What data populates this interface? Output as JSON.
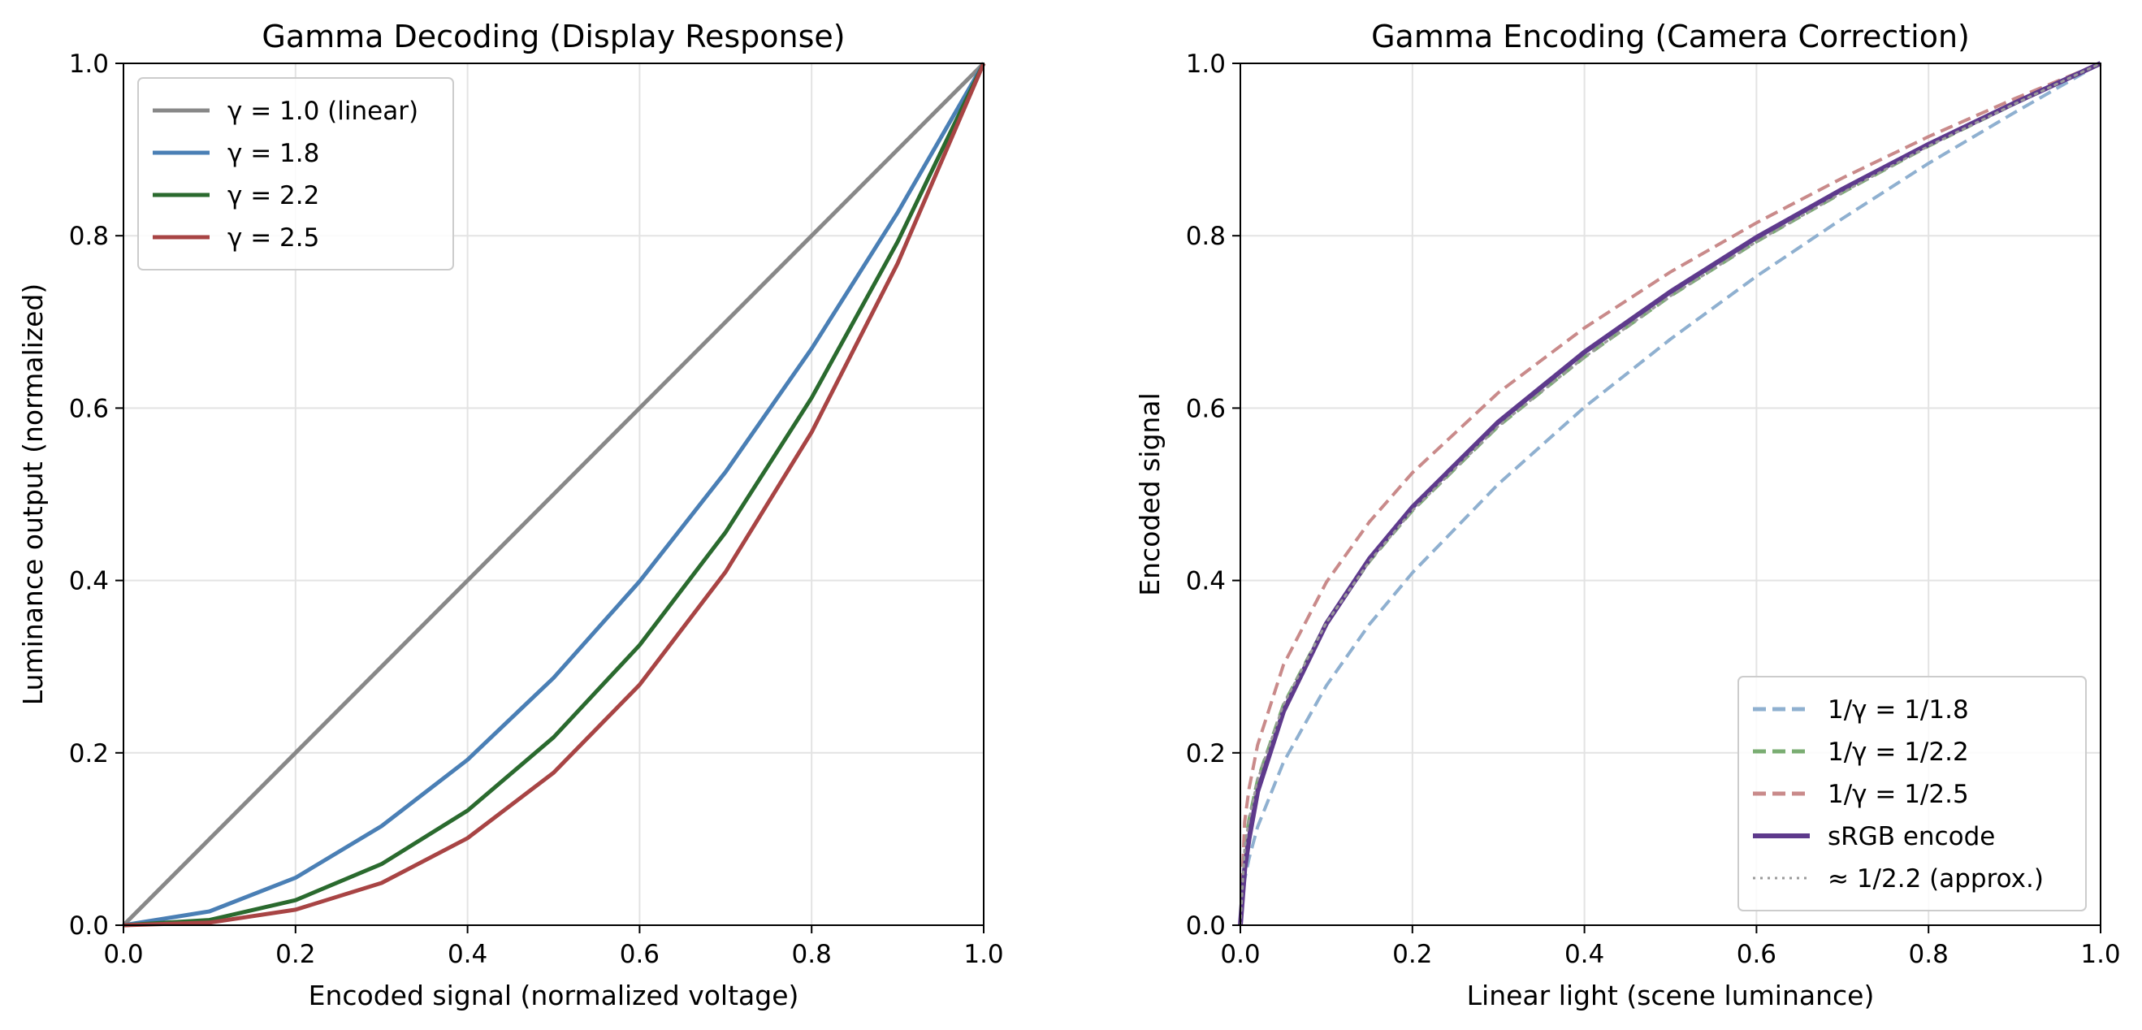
{
  "chart_data": [
    {
      "type": "line",
      "title": "Gamma Decoding (Display Response)",
      "xlabel": "Encoded signal (normalized voltage)",
      "ylabel": "Luminance output (normalized)",
      "xlim": [
        0.0,
        1.0
      ],
      "ylim": [
        0.0,
        1.0
      ],
      "xticks": [
        "0.0",
        "0.2",
        "0.4",
        "0.6",
        "0.8",
        "1.0"
      ],
      "yticks": [
        "0.0",
        "0.2",
        "0.4",
        "0.6",
        "0.8",
        "1.0"
      ],
      "grid": true,
      "legend_position": "top-left",
      "x": [
        0.0,
        0.1,
        0.2,
        0.3,
        0.4,
        0.5,
        0.6,
        0.7,
        0.8,
        0.9,
        1.0
      ],
      "series": [
        {
          "name": "γ = 1.0 (linear)",
          "color": "#888888",
          "style": "solid",
          "values": [
            0.0,
            0.1,
            0.2,
            0.3,
            0.4,
            0.5,
            0.6,
            0.7,
            0.8,
            0.9,
            1.0
          ]
        },
        {
          "name": "γ = 1.8",
          "color": "#4a7fb5",
          "style": "solid",
          "values": [
            0.0,
            0.016,
            0.055,
            0.115,
            0.192,
            0.287,
            0.399,
            0.526,
            0.669,
            0.827,
            1.0
          ]
        },
        {
          "name": "γ = 2.2",
          "color": "#2a6a2e",
          "style": "solid",
          "values": [
            0.0,
            0.006,
            0.029,
            0.071,
            0.133,
            0.218,
            0.325,
            0.456,
            0.612,
            0.793,
            1.0
          ]
        },
        {
          "name": "γ = 2.5",
          "color": "#a84444",
          "style": "solid",
          "values": [
            0.0,
            0.003,
            0.018,
            0.049,
            0.101,
            0.177,
            0.279,
            0.41,
            0.572,
            0.768,
            1.0
          ]
        }
      ]
    },
    {
      "type": "line",
      "title": "Gamma Encoding (Camera Correction)",
      "xlabel": "Linear light (scene luminance)",
      "ylabel": "Encoded signal",
      "xlim": [
        0.0,
        1.0
      ],
      "ylim": [
        0.0,
        1.0
      ],
      "xticks": [
        "0.0",
        "0.2",
        "0.4",
        "0.6",
        "0.8",
        "1.0"
      ],
      "yticks": [
        "0.0",
        "0.2",
        "0.4",
        "0.6",
        "0.8",
        "1.0"
      ],
      "grid": true,
      "legend_position": "bottom-right",
      "x": [
        0.0,
        0.005,
        0.01,
        0.02,
        0.05,
        0.1,
        0.15,
        0.2,
        0.3,
        0.4,
        0.5,
        0.6,
        0.7,
        0.8,
        0.9,
        1.0
      ],
      "series": [
        {
          "name": "1/γ = 1/1.8",
          "color": "#8fb0d0",
          "style": "dashed",
          "values": [
            0.0,
            0.053,
            0.077,
            0.114,
            0.189,
            0.278,
            0.349,
            0.409,
            0.512,
            0.601,
            0.68,
            0.753,
            0.82,
            0.884,
            0.943,
            1.0
          ]
        },
        {
          "name": "1/γ = 1/2.2",
          "color": "#7aad72",
          "style": "dashed",
          "values": [
            0.0,
            0.09,
            0.123,
            0.169,
            0.256,
            0.351,
            0.422,
            0.481,
            0.579,
            0.659,
            0.73,
            0.793,
            0.85,
            0.904,
            0.953,
            1.0
          ]
        },
        {
          "name": "1/γ = 1/2.5",
          "color": "#c98a8a",
          "style": "dashed",
          "values": [
            0.0,
            0.12,
            0.158,
            0.209,
            0.302,
            0.398,
            0.468,
            0.525,
            0.618,
            0.693,
            0.758,
            0.815,
            0.867,
            0.915,
            0.959,
            1.0
          ]
        },
        {
          "name": "sRGB encode",
          "color": "#5e3a8c",
          "style": "solid",
          "values": [
            0.0,
            0.065,
            0.1,
            0.155,
            0.248,
            0.35,
            0.425,
            0.485,
            0.584,
            0.665,
            0.735,
            0.798,
            0.854,
            0.906,
            0.954,
            1.0
          ]
        },
        {
          "name": "≈ 1/2.2 (approx.)",
          "color": "#9a9a9a",
          "style": "dotted",
          "values": [
            0.0,
            0.09,
            0.123,
            0.169,
            0.256,
            0.351,
            0.422,
            0.481,
            0.579,
            0.659,
            0.73,
            0.793,
            0.85,
            0.904,
            0.953,
            1.0
          ]
        }
      ]
    }
  ]
}
